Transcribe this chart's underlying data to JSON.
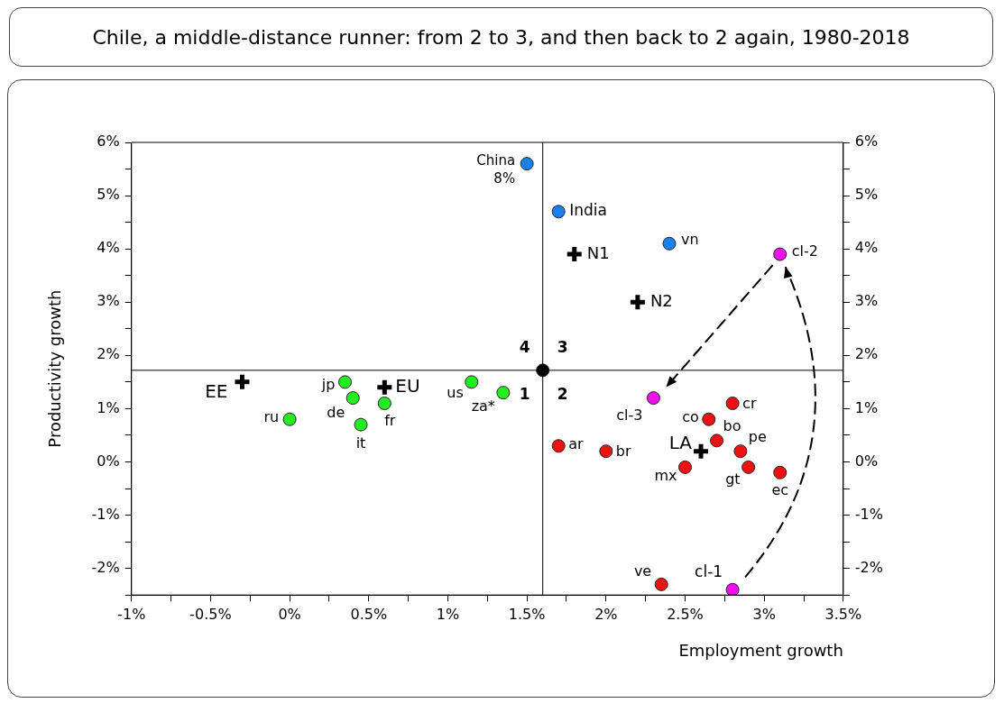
{
  "chart_data": {
    "type": "scatter",
    "title": "Chile, a middle-distance runner: from 2 to 3, and then back to 2 again, 1980-2018",
    "xlabel": "Employment growth",
    "ylabel": "Productivity growth",
    "xlim": [
      -1,
      3.5
    ],
    "ylim": [
      -2.5,
      6
    ],
    "y2lim": [
      -2.5,
      6
    ],
    "xticks": [
      {
        "value": -1,
        "label": "-1%"
      },
      {
        "value": -0.75,
        "label": null
      },
      {
        "value": -0.5,
        "label": "-0.5%"
      },
      {
        "value": -0.25,
        "label": null
      },
      {
        "value": 0,
        "label": "0%"
      },
      {
        "value": 0.25,
        "label": null
      },
      {
        "value": 0.5,
        "label": "0.5%"
      },
      {
        "value": 0.75,
        "label": null
      },
      {
        "value": 1,
        "label": "1%"
      },
      {
        "value": 1.25,
        "label": null
      },
      {
        "value": 1.5,
        "label": "1.5%"
      },
      {
        "value": 1.75,
        "label": null
      },
      {
        "value": 2,
        "label": "2%"
      },
      {
        "value": 2.25,
        "label": null
      },
      {
        "value": 2.5,
        "label": "2.5%"
      },
      {
        "value": 2.75,
        "label": null
      },
      {
        "value": 3,
        "label": "3%"
      },
      {
        "value": 3.25,
        "label": null
      },
      {
        "value": 3.5,
        "label": "3.5%"
      }
    ],
    "yticks": [
      {
        "value": -2.5,
        "label": null
      },
      {
        "value": -2,
        "label": "-2%"
      },
      {
        "value": -1.5,
        "label": null
      },
      {
        "value": -1,
        "label": "-1%"
      },
      {
        "value": -0.5,
        "label": null
      },
      {
        "value": 0,
        "label": "0%"
      },
      {
        "value": 0.5,
        "label": null
      },
      {
        "value": 1,
        "label": "1%"
      },
      {
        "value": 1.5,
        "label": null
      },
      {
        "value": 2,
        "label": "2%"
      },
      {
        "value": 2.5,
        "label": null
      },
      {
        "value": 3,
        "label": "3%"
      },
      {
        "value": 3.5,
        "label": null
      },
      {
        "value": 4,
        "label": "4%"
      },
      {
        "value": 4.5,
        "label": null
      },
      {
        "value": 5,
        "label": "5%"
      },
      {
        "value": 5.5,
        "label": null
      },
      {
        "value": 6,
        "label": "6%"
      }
    ],
    "y2ticks": [
      {
        "value": -2.5,
        "label": null
      },
      {
        "value": -2,
        "label": "-2%"
      },
      {
        "value": -1.5,
        "label": null
      },
      {
        "value": -1,
        "label": "-1%"
      },
      {
        "value": -0.5,
        "label": null
      },
      {
        "value": 0,
        "label": "0%"
      },
      {
        "value": 0.5,
        "label": null
      },
      {
        "value": 1,
        "label": "1%"
      },
      {
        "value": 1.5,
        "label": null
      },
      {
        "value": 2,
        "label": "2%"
      },
      {
        "value": 2.5,
        "label": null
      },
      {
        "value": 3,
        "label": "3%"
      },
      {
        "value": 3.5,
        "label": null
      },
      {
        "value": 4,
        "label": "4%"
      },
      {
        "value": 4.5,
        "label": null
      },
      {
        "value": 5,
        "label": "5%"
      },
      {
        "value": 5.5,
        "label": null
      },
      {
        "value": 6,
        "label": "6%"
      }
    ],
    "grid": false,
    "legend": false,
    "series": [
      {
        "color": "#1a80ea",
        "marker": "circle",
        "x": [
          1.5,
          1.7,
          2.4
        ],
        "values": [
          5.6,
          4.7,
          4.1
        ]
      },
      {
        "color": "#22ee22",
        "marker": "circle",
        "x": [
          0.35,
          0.4,
          0.6,
          0.45,
          0,
          1.15,
          1.35
        ],
        "values": [
          1.5,
          1.2,
          1.1,
          0.7,
          0.8,
          1.5,
          1.3
        ]
      },
      {
        "color": "#ee1111",
        "marker": "circle",
        "x": [
          2.8,
          2.65,
          2.7,
          2.85,
          1.7,
          2.0,
          2.5,
          2.9,
          3.1,
          2.35
        ],
        "values": [
          1.1,
          0.8,
          0.4,
          0.2,
          0.3,
          0.2,
          -0.1,
          -0.1,
          -0.2,
          -2.3
        ]
      },
      {
        "color": "#ee11ee",
        "marker": "circle",
        "x": [
          2.8,
          3.1,
          2.3
        ],
        "values": [
          -2.4,
          3.9,
          1.2
        ]
      },
      {
        "color": "#000000",
        "marker": "cross",
        "x": [
          1.8,
          2.2,
          -0.3,
          0.6,
          2.6
        ],
        "values": [
          3.9,
          3.0,
          1.5,
          1.4,
          0.2
        ]
      },
      {
        "color": "#000000",
        "marker": "circle",
        "x": [
          1.6
        ],
        "values": [
          1.72
        ]
      }
    ],
    "ref_lines": [
      {
        "axis": "x",
        "value": 1.6,
        "color": "#000000"
      },
      {
        "axis": "y",
        "value": 1.72,
        "color": "#000000"
      }
    ],
    "annotations": [
      {
        "text": "China",
        "x": 1.5,
        "y": 5.6
      },
      {
        "text": "8%",
        "x": 1.5,
        "y": 5.6
      },
      {
        "text": "India",
        "x": 1.7,
        "y": 4.7
      },
      {
        "text": "vn",
        "x": 2.4,
        "y": 4.1
      },
      {
        "text": "N1",
        "x": 1.8,
        "y": 3.9
      },
      {
        "text": "N2",
        "x": 2.2,
        "y": 3.0
      },
      {
        "text": "cl-2",
        "x": 3.1,
        "y": 3.9
      },
      {
        "text": "cl-3",
        "x": 2.3,
        "y": 1.2
      },
      {
        "text": "EE",
        "x": -0.3,
        "y": 1.5
      },
      {
        "text": "jp",
        "x": 0.35,
        "y": 1.5
      },
      {
        "text": "de",
        "x": 0.4,
        "y": 1.2
      },
      {
        "text": "EU",
        "x": 0.6,
        "y": 1.4
      },
      {
        "text": "fr",
        "x": 0.6,
        "y": 1.1
      },
      {
        "text": "it",
        "x": 0.45,
        "y": 0.7
      },
      {
        "text": "ru",
        "x": 0,
        "y": 0.8
      },
      {
        "text": "us",
        "x": 1.15,
        "y": 1.5
      },
      {
        "text": "za*",
        "x": 1.35,
        "y": 1.3
      },
      {
        "text": "cr",
        "x": 2.8,
        "y": 1.1
      },
      {
        "text": "co",
        "x": 2.65,
        "y": 0.8
      },
      {
        "text": "bo",
        "x": 2.7,
        "y": 0.4
      },
      {
        "text": "pe",
        "x": 2.85,
        "y": 0.2
      },
      {
        "text": "LA",
        "x": 2.6,
        "y": 0.2
      },
      {
        "text": "ar",
        "x": 1.7,
        "y": 0.3
      },
      {
        "text": "br",
        "x": 2.0,
        "y": 0.2
      },
      {
        "text": "mx",
        "x": 2.5,
        "y": -0.1
      },
      {
        "text": "gt",
        "x": 2.9,
        "y": -0.1
      },
      {
        "text": "ec",
        "x": 3.1,
        "y": -0.2
      },
      {
        "text": "ve",
        "x": 2.35,
        "y": -2.3
      },
      {
        "text": "cl-1",
        "x": 2.8,
        "y": -2.4
      },
      "4",
      "3",
      "1",
      "2"
    ]
  }
}
